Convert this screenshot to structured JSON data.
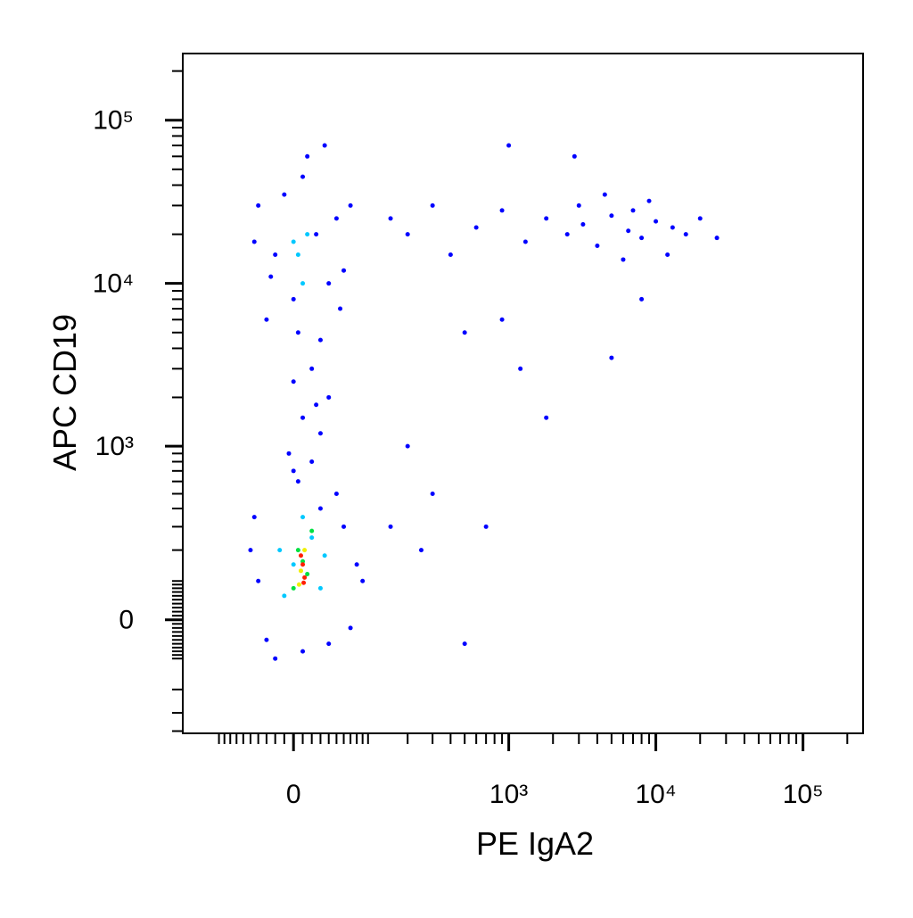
{
  "chart_data": {
    "type": "scatter",
    "x_label": "PE  IgA2",
    "y_label": "APC  CD19",
    "xscale": {
      "type": "arcsinh",
      "cofactor": 69
    },
    "yscale": {
      "type": "arcsinh",
      "cofactor": 174
    },
    "xlim": [
      -189,
      256000
    ],
    "ylim": [
      -414,
      256000
    ],
    "xticks": [
      0,
      {
        "value": 1000,
        "label": "10³"
      },
      {
        "value": 10000,
        "label": "10⁴"
      },
      {
        "value": 100000,
        "label": "10⁵"
      }
    ],
    "yticks": [
      0,
      {
        "value": 1000,
        "label": "10³"
      },
      {
        "value": 10000,
        "label": "10⁴"
      },
      {
        "value": 100000,
        "label": "10⁵"
      }
    ],
    "xminorticks": [
      -100,
      -90,
      -80,
      -70,
      -60,
      -50,
      -40,
      -30,
      -20,
      -10,
      10,
      20,
      30,
      40,
      50,
      60,
      70,
      80,
      90,
      100,
      200,
      300,
      400,
      500,
      600,
      700,
      800,
      900,
      2000,
      3000,
      4000,
      5000,
      6000,
      7000,
      8000,
      9000,
      20000,
      30000,
      40000,
      50000,
      60000,
      70000,
      80000,
      90000,
      200000
    ],
    "yminorticks": [
      -400,
      -300,
      -200,
      -100,
      -90,
      -80,
      -70,
      -60,
      -50,
      -40,
      -30,
      -20,
      -10,
      10,
      20,
      30,
      40,
      50,
      60,
      70,
      80,
      90,
      100,
      200,
      300,
      400,
      500,
      600,
      700,
      800,
      900,
      2000,
      3000,
      4000,
      5000,
      6000,
      7000,
      8000,
      9000,
      20000,
      30000,
      40000,
      50000,
      60000,
      70000,
      80000,
      90000,
      200000
    ],
    "series": [
      {
        "color": "#0000ff",
        "x": [
          -40,
          -20,
          0,
          10,
          25,
          40,
          -30,
          50,
          60,
          -45,
          15,
          35,
          5,
          30,
          -10,
          70,
          55,
          -25,
          20,
          0,
          10,
          30,
          -5,
          20,
          40,
          5,
          25,
          -50,
          -40,
          -30,
          60,
          80,
          70,
          -20,
          50,
          0,
          30,
          90,
          -45,
          10,
          40,
          150,
          200,
          300,
          400,
          600,
          900,
          1300,
          1800,
          2500,
          3200,
          4000,
          5000,
          6500,
          8000,
          10000,
          13000,
          16000,
          20000,
          26000,
          3000,
          6000,
          9000,
          12000,
          4500,
          7000,
          500,
          1200,
          1800,
          300,
          700,
          150,
          250,
          500,
          200,
          8000,
          5000,
          900,
          2800,
          1000
        ],
        "y": [
          30000,
          15000,
          8000,
          45000,
          20000,
          10000,
          6000,
          25000,
          12000,
          18000,
          60000,
          70000,
          5000,
          4500,
          35000,
          30000,
          7000,
          11000,
          3000,
          2500,
          1500,
          1200,
          900,
          800,
          2000,
          600,
          1800,
          200,
          100,
          -50,
          300,
          150,
          -20,
          -100,
          500,
          700,
          400,
          100,
          350,
          -80,
          -60,
          25000,
          20000,
          30000,
          15000,
          22000,
          28000,
          18000,
          25000,
          20000,
          23000,
          17000,
          26000,
          21000,
          19000,
          24000,
          22000,
          20000,
          25000,
          19000,
          30000,
          14000,
          32000,
          15000,
          35000,
          28000,
          5000,
          3000,
          1500,
          500,
          300,
          300,
          200,
          -60,
          1000,
          8000,
          3500,
          6000,
          60000,
          70000
        ]
      },
      {
        "color": "#00c8ff",
        "x": [
          5,
          15,
          10,
          0,
          0,
          20,
          -10,
          30,
          10,
          -15,
          35
        ],
        "y": [
          15000,
          20000,
          10000,
          18000,
          150,
          250,
          60,
          80,
          350,
          200,
          180
        ]
      },
      {
        "color": "#00e040",
        "x": [
          5,
          15,
          0,
          20,
          10
        ],
        "y": [
          200,
          120,
          80,
          280,
          160
        ]
      },
      {
        "color": "#f0f000",
        "x": [
          8,
          12,
          6
        ],
        "y": [
          130,
          200,
          90
        ]
      },
      {
        "color": "#ff2000",
        "x": [
          10,
          12,
          8,
          11
        ],
        "y": [
          150,
          110,
          180,
          95
        ]
      }
    ]
  }
}
